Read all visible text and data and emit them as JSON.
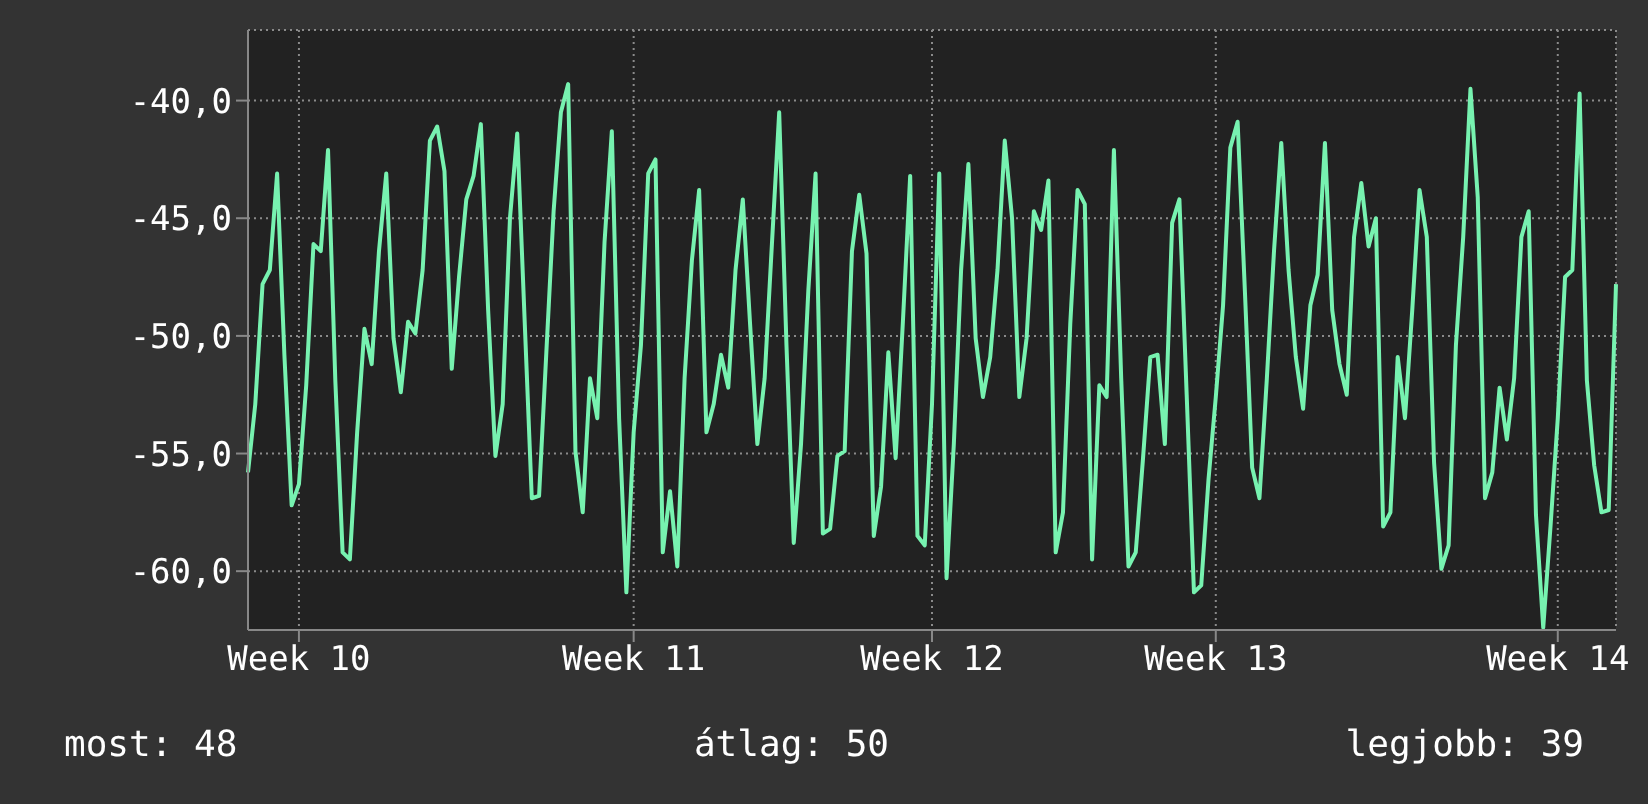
{
  "chart_data": {
    "type": "line",
    "series": [
      {
        "color": "#77f2b0",
        "values": [
          -55.8,
          -52.9,
          -47.8,
          -47.2,
          -43.1,
          -50.8,
          -57.2,
          -56.3,
          -52.1,
          -46.1,
          -46.4,
          -42.1,
          -51.9,
          -59.2,
          -59.5,
          -54.1,
          -49.7,
          -51.2,
          -46.4,
          -43.1,
          -50.1,
          -52.4,
          -49.4,
          -49.9,
          -47.2,
          -41.7,
          -41.1,
          -43.0,
          -51.4,
          -47.5,
          -44.2,
          -43.2,
          -41.0,
          -48.9,
          -55.1,
          -52.9,
          -45.0,
          -41.4,
          -49.2,
          -56.9,
          -56.8,
          -50.7,
          -44.7,
          -40.5,
          -39.3,
          -54.9,
          -57.5,
          -51.8,
          -53.5,
          -46.0,
          -41.3,
          -53.5,
          -60.9,
          -54.1,
          -50.4,
          -43.1,
          -42.5,
          -59.2,
          -56.6,
          -59.8,
          -51.8,
          -46.8,
          -43.8,
          -54.1,
          -52.9,
          -50.8,
          -52.2,
          -47.2,
          -44.2,
          -49.5,
          -54.6,
          -51.8,
          -46.1,
          -40.5,
          -50.4,
          -58.8,
          -54.6,
          -48.1,
          -43.1,
          -58.4,
          -58.2,
          -55.1,
          -54.9,
          -46.4,
          -44.0,
          -46.5,
          -58.5,
          -56.4,
          -50.7,
          -55.2,
          -49.4,
          -43.2,
          -58.5,
          -58.9,
          -52.9,
          -43.1,
          -60.3,
          -54.6,
          -47.2,
          -42.7,
          -50.1,
          -52.6,
          -50.9,
          -47.2,
          -41.7,
          -45.0,
          -52.6,
          -50.1,
          -44.7,
          -45.5,
          -43.4,
          -59.2,
          -57.5,
          -49.5,
          -43.8,
          -44.4,
          -59.5,
          -52.1,
          -52.6,
          -42.1,
          -51.8,
          -59.8,
          -59.2,
          -55.2,
          -50.9,
          -50.8,
          -54.6,
          -45.2,
          -44.2,
          -52.5,
          -60.9,
          -60.6,
          -56.1,
          -52.6,
          -48.7,
          -42.0,
          -40.9,
          -48.1,
          -55.6,
          -56.9,
          -51.9,
          -46.4,
          -41.8,
          -47.2,
          -50.9,
          -53.1,
          -48.7,
          -47.4,
          -41.8,
          -48.9,
          -51.2,
          -52.5,
          -45.8,
          -43.5,
          -46.2,
          -45.0,
          -58.1,
          -57.5,
          -50.9,
          -53.5,
          -48.9,
          -43.8,
          -45.8,
          -55.4,
          -59.9,
          -58.9,
          -50.4,
          -45.8,
          -39.5,
          -44.1,
          -56.9,
          -55.8,
          -52.2,
          -54.4,
          -51.8,
          -45.8,
          -44.7,
          -57.6,
          -62.4,
          -58.1,
          -53.5,
          -47.5,
          -47.2,
          -39.7,
          -51.9,
          -55.5,
          -57.5,
          -57.4,
          -47.8
        ]
      }
    ],
    "categories": [
      null,
      null,
      null,
      null,
      null,
      null,
      null,
      "Week 10",
      null,
      null,
      null,
      null,
      null,
      null,
      null,
      null,
      null,
      null,
      null,
      null,
      null,
      null,
      null,
      null,
      null,
      null,
      null,
      null,
      null,
      null,
      null,
      null,
      null,
      null,
      null,
      null,
      null,
      null,
      null,
      null,
      null,
      null,
      null,
      null,
      null,
      null,
      null,
      null,
      null,
      null,
      null,
      null,
      null,
      "Week 11",
      null,
      null,
      null,
      null,
      null,
      null,
      null,
      null,
      null,
      null,
      null,
      null,
      null,
      null,
      null,
      null,
      null,
      null,
      null,
      null,
      null,
      null,
      null,
      null,
      null,
      null,
      null,
      null,
      null,
      null,
      null,
      null,
      null,
      null,
      null,
      null,
      null,
      null,
      null,
      null,
      "Week 12",
      null,
      null,
      null,
      null,
      null,
      null,
      null,
      null,
      null,
      null,
      null,
      null,
      null,
      null,
      null,
      null,
      null,
      null,
      null,
      null,
      null,
      null,
      null,
      null,
      null,
      null,
      null,
      null,
      null,
      null,
      null,
      null,
      null,
      null,
      null,
      null,
      null,
      null,
      "Week 13",
      null,
      null,
      null,
      null,
      null,
      null,
      null,
      null,
      null,
      null,
      null,
      null,
      null,
      null,
      null,
      null,
      null,
      null,
      null,
      null,
      null,
      null,
      null,
      null,
      null,
      null,
      null,
      null,
      null,
      null,
      null,
      null,
      null,
      null,
      null,
      null,
      null,
      null,
      null,
      null,
      null,
      null,
      null,
      null,
      null,
      null,
      "Week 14",
      null,
      null,
      null,
      null,
      null,
      null,
      null,
      null
    ],
    "ylim": [
      -62.5,
      -37
    ],
    "yticks": [
      {
        "value": -60,
        "label": "-60,0"
      },
      {
        "value": -55,
        "label": "-55,0"
      },
      {
        "value": -50,
        "label": "-50,0"
      },
      {
        "value": -45,
        "label": "-45,0"
      },
      {
        "value": -40,
        "label": "-40,0"
      }
    ],
    "grid": true,
    "marker": "none",
    "line_style": "solid",
    "annotations": [
      "most: 48",
      "átlag: 50",
      "legjobb: 39"
    ]
  }
}
